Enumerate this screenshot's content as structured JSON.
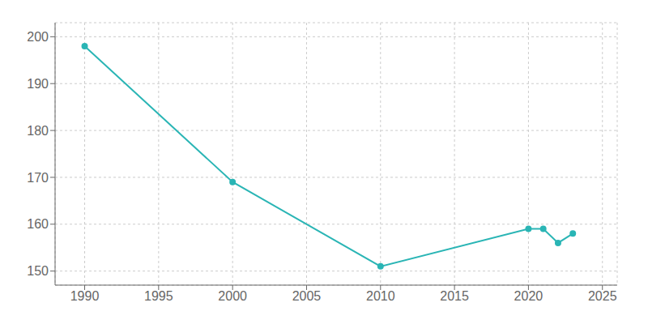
{
  "chart_data": {
    "type": "line",
    "x": [
      1990,
      2000,
      2010,
      2020,
      2021,
      2022,
      2023
    ],
    "values": [
      198,
      169,
      151,
      159,
      159,
      156,
      158
    ],
    "color": "#2ab5b5",
    "marker": "circle",
    "xlim": [
      1988,
      2026
    ],
    "ylim": [
      147,
      203
    ],
    "xticks": [
      1990,
      1995,
      2000,
      2005,
      2010,
      2015,
      2020,
      2025
    ],
    "yticks": [
      150,
      160,
      170,
      180,
      190,
      200
    ],
    "grid": true
  }
}
